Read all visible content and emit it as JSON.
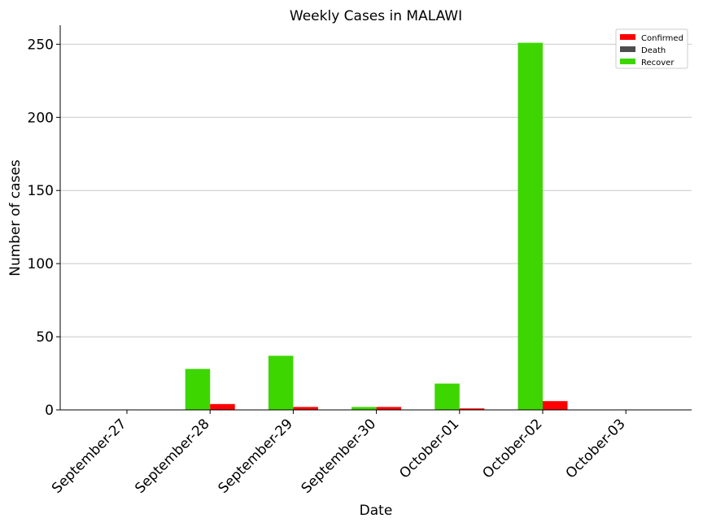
{
  "chart_data": {
    "type": "bar",
    "title": "Weekly Cases in MALAWI",
    "xlabel": "Date",
    "ylabel": "Number of cases",
    "categories": [
      "September-27",
      "September-28",
      "September-29",
      "September-30",
      "October-01",
      "October-02",
      "October-03"
    ],
    "series": [
      {
        "name": "Confirmed",
        "color": "#ff0000",
        "values": [
          0,
          4,
          2,
          2,
          1,
          6,
          0
        ]
      },
      {
        "name": "Death",
        "color": "#4d4d4d",
        "values": [
          0,
          0,
          0,
          0,
          0,
          0,
          0
        ]
      },
      {
        "name": "Recover",
        "color": "#3dd600",
        "values": [
          0,
          28,
          37,
          2,
          18,
          251,
          0
        ]
      }
    ],
    "ylim": [
      0,
      263
    ],
    "yticks": [
      0,
      50,
      100,
      150,
      200,
      250
    ],
    "grid": "horizontal",
    "legend_position": "top-right"
  }
}
